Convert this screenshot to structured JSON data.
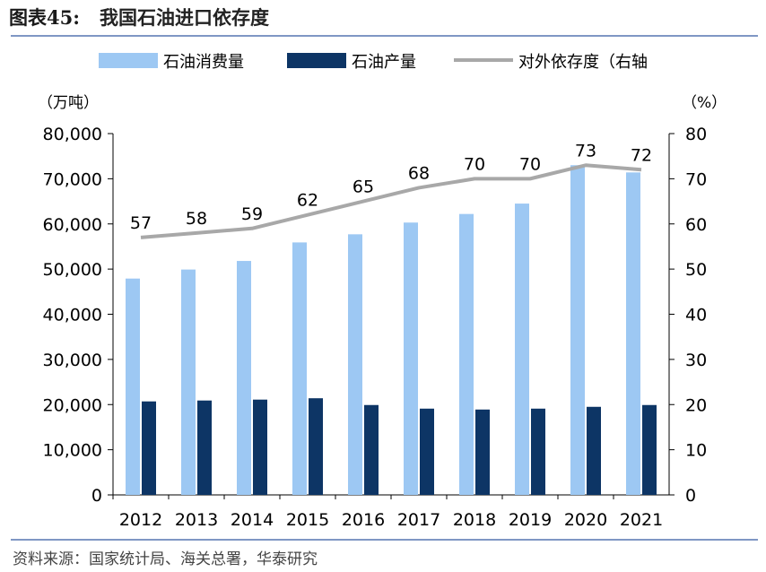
{
  "figure": {
    "label": "图表45:",
    "title": "我国石油进口依存度",
    "source": "资料来源：国家统计局、海关总署，华泰研究"
  },
  "chart_data": {
    "type": "bar",
    "categories": [
      "2012",
      "2013",
      "2014",
      "2015",
      "2016",
      "2017",
      "2018",
      "2019",
      "2020",
      "2021"
    ],
    "series": [
      {
        "name": "石油消费量",
        "kind": "bar",
        "axis": "left",
        "color": "#9dc8f3",
        "values": [
          47900,
          49900,
          51800,
          55900,
          57700,
          60300,
          62200,
          64500,
          73000,
          71400
        ]
      },
      {
        "name": "石油产量",
        "kind": "bar",
        "axis": "left",
        "color": "#0d3565",
        "values": [
          20700,
          20900,
          21100,
          21400,
          19900,
          19100,
          18900,
          19100,
          19500,
          19900
        ]
      },
      {
        "name": "对外依存度（右轴",
        "kind": "line",
        "axis": "right",
        "color": "#a8a8a8",
        "values": [
          57,
          58,
          59,
          62,
          65,
          68,
          70,
          70,
          73,
          72
        ],
        "labels": [
          "57",
          "58",
          "59",
          "62",
          "65",
          "68",
          "70",
          "70",
          "73",
          "72"
        ]
      }
    ],
    "left_axis": {
      "unit": "（万吨）",
      "range": [
        0,
        80000
      ],
      "ticks": [
        "0",
        "10,000",
        "20,000",
        "30,000",
        "40,000",
        "50,000",
        "60,000",
        "70,000",
        "80,000"
      ]
    },
    "right_axis": {
      "unit": "（%）",
      "range": [
        0,
        80
      ],
      "ticks": [
        "0",
        "10",
        "20",
        "30",
        "40",
        "50",
        "60",
        "70",
        "80"
      ]
    },
    "legend_position": "top",
    "grid": false
  }
}
